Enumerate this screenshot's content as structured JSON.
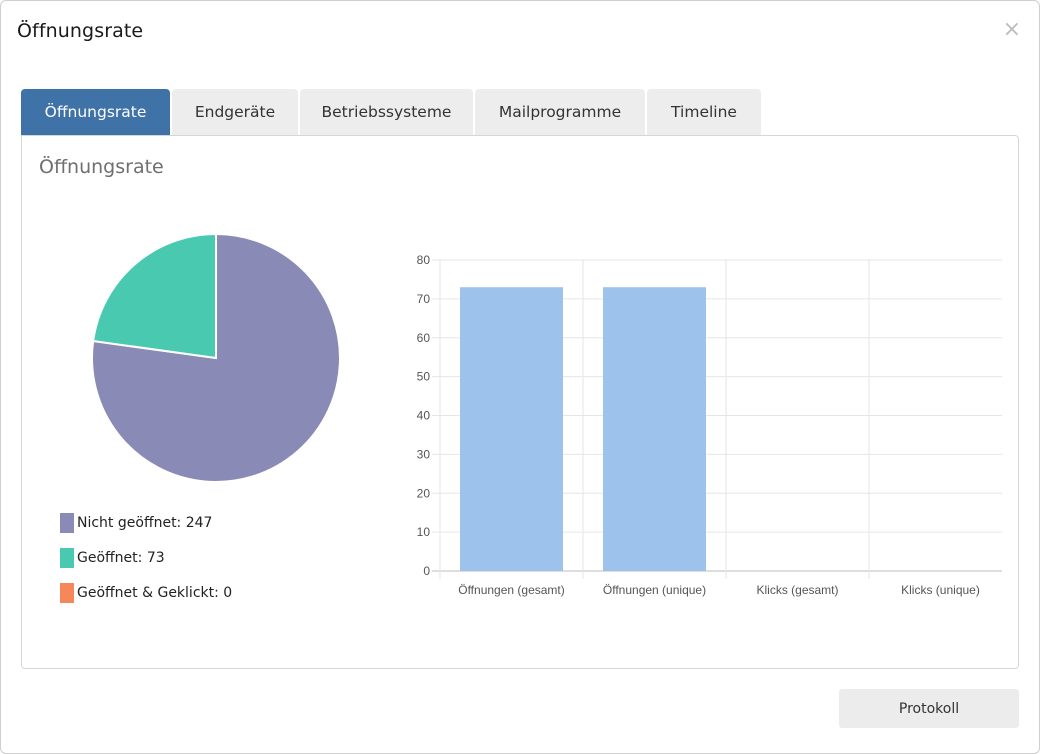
{
  "modal": {
    "title": "Öffnungsrate",
    "close_glyph": "×"
  },
  "tabs": [
    {
      "label": "Öffnungsrate",
      "active": true
    },
    {
      "label": "Endgeräte",
      "active": false
    },
    {
      "label": "Betriebssysteme",
      "active": false
    },
    {
      "label": "Mailprogramme",
      "active": false
    },
    {
      "label": "Timeline",
      "active": false
    }
  ],
  "panel": {
    "title": "Öffnungsrate"
  },
  "legend": [
    {
      "label": "Nicht geöffnet: 247",
      "color": "#8a8ab7"
    },
    {
      "label": "Geöffnet: 73",
      "color": "#48c9b0"
    },
    {
      "label": "Geöffnet & Geklickt: 0",
      "color": "#f5875a"
    }
  ],
  "footer": {
    "button_label": "Protokoll"
  },
  "chart_data": [
    {
      "type": "pie",
      "categories": [
        "Nicht geöffnet",
        "Geöffnet",
        "Geöffnet & Geklickt"
      ],
      "values": [
        247,
        73,
        0
      ],
      "colors": [
        "#8a8ab7",
        "#48c9b0",
        "#f5875a"
      ]
    },
    {
      "type": "bar",
      "categories": [
        "Öffnungen (gesamt)",
        "Öffnungen (unique)",
        "Klicks (gesamt)",
        "Klicks (unique)"
      ],
      "values": [
        73,
        73,
        0,
        0
      ],
      "ylim": [
        0,
        80
      ],
      "yticks": [
        0,
        10,
        20,
        30,
        40,
        50,
        60,
        70,
        80
      ],
      "color": "#9dc2eb",
      "grid": true
    }
  ]
}
